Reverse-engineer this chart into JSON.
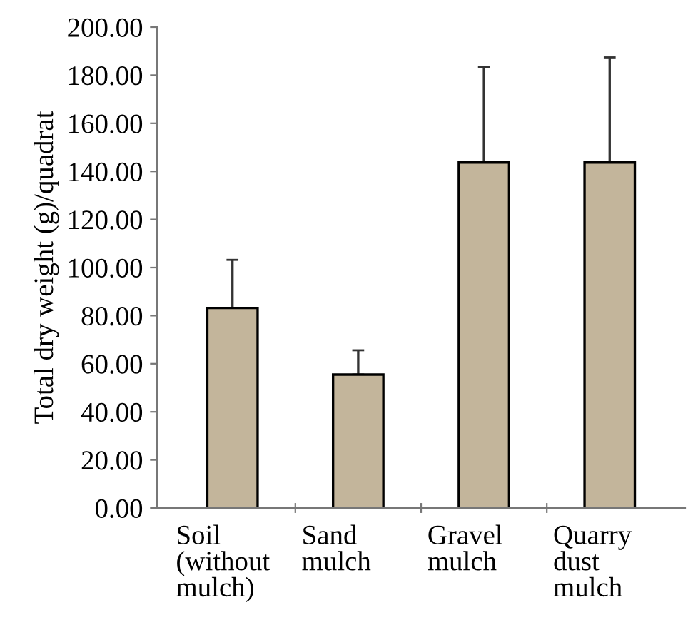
{
  "chart_data": {
    "type": "bar",
    "ylabel": "Total dry weight (g)/quadrat",
    "categories": [
      "Soil\n(without\nmulch)",
      "Sand\nmulch",
      "Gravel\nmulch",
      "Quarry\ndust\nmulch"
    ],
    "values": [
      83.2,
      55.5,
      143.7,
      143.7
    ],
    "errors": [
      [
        83.2,
        103.2
      ],
      [
        55.5,
        65.6
      ],
      [
        143.7,
        183.4
      ],
      [
        143.7,
        187.4
      ]
    ],
    "color": "#c3b59b",
    "ylim": [
      0,
      200
    ],
    "yticks": [
      {
        "value": 0,
        "label": "0.00"
      },
      {
        "value": 20,
        "label": "20.00"
      },
      {
        "value": 40,
        "label": "40.00"
      },
      {
        "value": 60,
        "label": "60.00"
      },
      {
        "value": 80,
        "label": "80.00"
      },
      {
        "value": 100,
        "label": "100.00"
      },
      {
        "value": 120,
        "label": "120.00"
      },
      {
        "value": 140,
        "label": "140.00"
      },
      {
        "value": 160,
        "label": "160.00"
      },
      {
        "value": 180,
        "label": "180.00"
      },
      {
        "value": 200,
        "label": "200.00"
      }
    ],
    "grid": false,
    "legend": false
  }
}
